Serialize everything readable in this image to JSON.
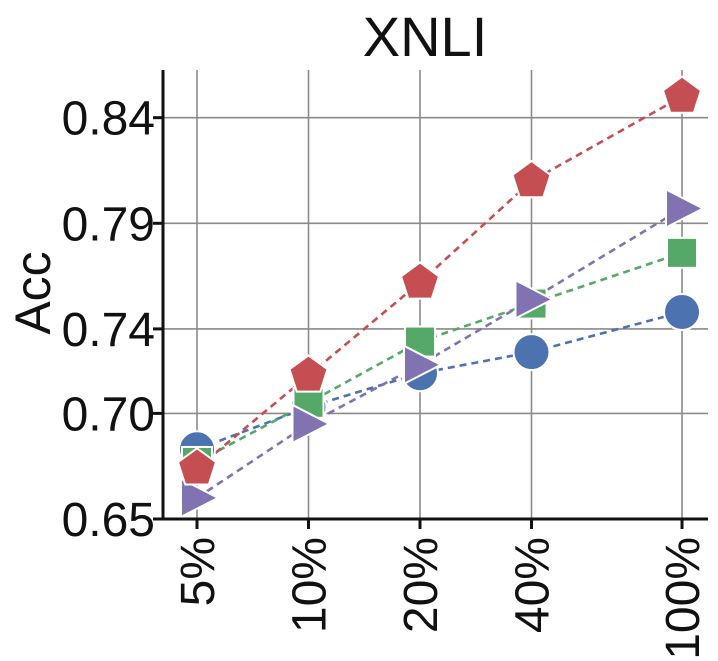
{
  "chart_data": {
    "type": "line",
    "title": "XNLI",
    "xlabel": "",
    "ylabel": "Acc",
    "categories": [
      "5%",
      "10%",
      "20%",
      "40%",
      "100%"
    ],
    "x_positions": [
      0,
      1,
      2,
      3,
      4.35
    ],
    "yticks": [
      "0.65",
      "0.70",
      "0.74",
      "0.79",
      "0.84"
    ],
    "ytick_values": [
      0.65,
      0.7,
      0.74,
      0.79,
      0.84
    ],
    "ylim": [
      0.65,
      0.855
    ],
    "grid": true,
    "legend": "none",
    "series": [
      {
        "color": "#4c72b0",
        "marker": "circle",
        "values": [
          0.683,
          0.703,
          0.719,
          0.729,
          0.748
        ]
      },
      {
        "color": "#55a868",
        "marker": "square",
        "values": [
          0.677,
          0.705,
          0.734,
          0.752,
          0.776
        ]
      },
      {
        "color": "#8172b2",
        "marker": "triangle-right",
        "values": [
          0.66,
          0.695,
          0.723,
          0.754,
          0.797
        ]
      },
      {
        "color": "#c44e52",
        "marker": "pentagon",
        "values": [
          0.674,
          0.718,
          0.762,
          0.81,
          0.85
        ]
      }
    ]
  }
}
